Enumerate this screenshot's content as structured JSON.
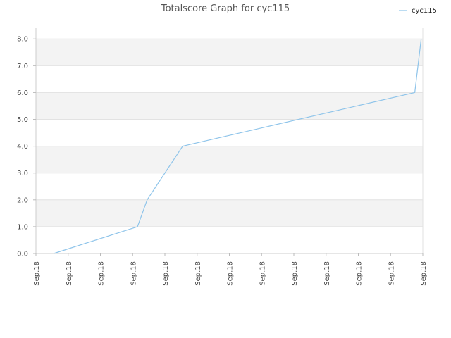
{
  "chart_data": {
    "type": "line",
    "title": "Totalscore Graph for cyc115",
    "xlabel": "",
    "ylabel": "",
    "x_tick_labels": [
      "Sep.18",
      "Sep.18",
      "Sep.18",
      "Sep.18",
      "Sep.18",
      "Sep.18",
      "Sep.18",
      "Sep.18",
      "Sep.18",
      "Sep.18",
      "Sep.18",
      "Sep.18",
      "Sep.18"
    ],
    "y_tick_labels": [
      "0.0",
      "1.0",
      "2.0",
      "3.0",
      "4.0",
      "5.0",
      "6.0",
      "7.0",
      "8.0"
    ],
    "ylim": [
      0,
      8.4
    ],
    "xlim": [
      0,
      12
    ],
    "grid": true,
    "legend": "top-right",
    "series": [
      {
        "name": "cyc115",
        "color": "#8ec4ea",
        "points": [
          {
            "x": 0.55,
            "y": 0
          },
          {
            "x": 3.15,
            "y": 1
          },
          {
            "x": 3.45,
            "y": 2
          },
          {
            "x": 4.55,
            "y": 4
          },
          {
            "x": 11.75,
            "y": 6
          },
          {
            "x": 11.95,
            "y": 8
          }
        ]
      }
    ]
  }
}
